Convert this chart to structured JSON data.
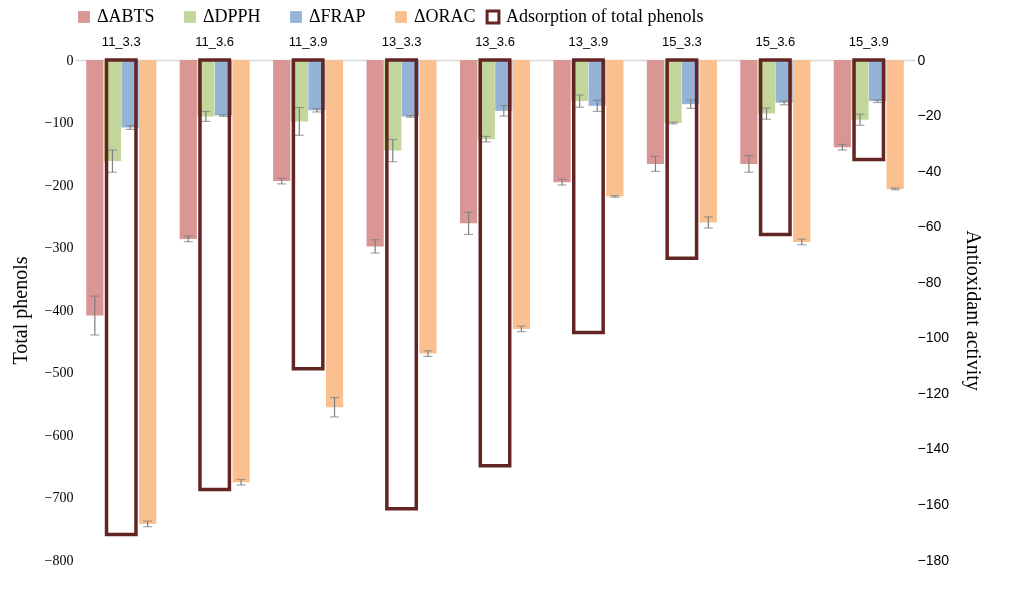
{
  "chart_data": {
    "type": "bar",
    "categories": [
      "11_3.3",
      "11_3.6",
      "11_3.9",
      "13_3.3",
      "13_3.6",
      "13_3.9",
      "15_3.3",
      "15_3.6",
      "15_3.9"
    ],
    "ylabel": "Total phenols",
    "y2label": "Antioxidant  activity",
    "ylim": [
      -800,
      0
    ],
    "yticks": [
      -800,
      -700,
      -600,
      -500,
      -400,
      -300,
      -200,
      -100,
      0
    ],
    "y2lim": [
      -180,
      0
    ],
    "y2ticks": [
      -180,
      -160,
      -140,
      -120,
      -100,
      -80,
      -60,
      -40,
      -20,
      0
    ],
    "grid": false,
    "legend": "top",
    "series": [
      {
        "name": "ΔABTS",
        "color": "#d99694",
        "axis": "y2",
        "values": [
          -92,
          -64.4,
          -43.6,
          -67.1,
          -58.8,
          -44,
          -37.4,
          -37.4,
          -31.4
        ],
        "errors": [
          7,
          1,
          1,
          2.4,
          4,
          1,
          2.7,
          3,
          1
        ]
      },
      {
        "name": "ΔDPPH",
        "color": "#c3d69b",
        "axis": "y2",
        "values": [
          -36.4,
          -20.3,
          -22.1,
          -32.6,
          -28.5,
          -14.8,
          -22.7,
          -19.3,
          -21.5
        ],
        "errors": [
          4,
          1.8,
          5,
          4,
          1,
          2.2,
          0.3,
          2,
          2
        ]
      },
      {
        "name": "ΔFRAP",
        "color": "#95b3d7",
        "axis": "y2",
        "values": [
          -24.3,
          -20,
          -18.1,
          -20.3,
          -18.3,
          -16.5,
          -15.9,
          -15.4,
          -14.8
        ],
        "errors": [
          0.7,
          0.3,
          0.6,
          0.3,
          1.9,
          2,
          1.5,
          0.7,
          0.5
        ]
      },
      {
        "name": "ΔORAC",
        "color": "#fac090",
        "axis": "y2",
        "values": [
          -167,
          -152,
          -125,
          -105.7,
          -96.8,
          -49.1,
          -58.5,
          -65.5,
          -46.4
        ],
        "errors": [
          1,
          1,
          3.5,
          1,
          1,
          0.3,
          2,
          1,
          0.3
        ]
      },
      {
        "name": "Adsorption of total phenols",
        "color": "#632523",
        "axis": "y",
        "values": [
          -759,
          -687,
          -494,
          -718,
          -649,
          -436,
          -317,
          -279,
          -159
        ]
      }
    ]
  }
}
